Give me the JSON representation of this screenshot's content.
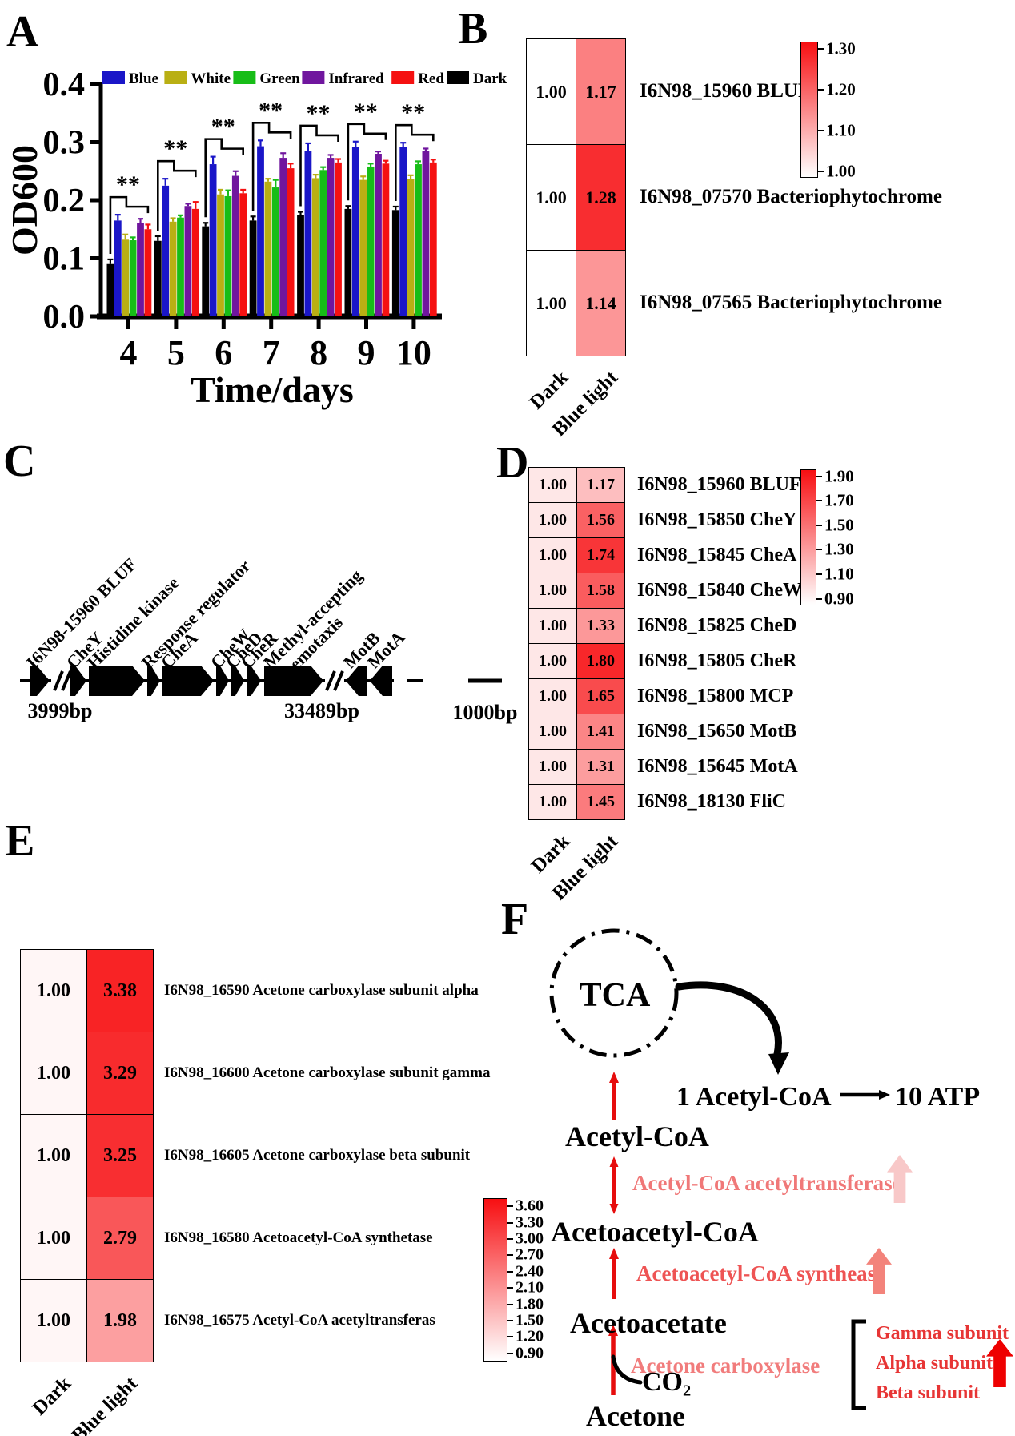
{
  "panel_letters": {
    "A": "A",
    "B": "B",
    "C": "C",
    "D": "D",
    "E": "E",
    "F": "F"
  },
  "chart_data": [
    {
      "id": "A",
      "type": "bar",
      "title": "",
      "xlabel": "Time/days",
      "ylabel": "OD600",
      "categories": [
        "4",
        "5",
        "6",
        "7",
        "8",
        "9",
        "10"
      ],
      "ylim": [
        0,
        0.4
      ],
      "yticks": [
        0,
        0.1,
        0.2,
        0.3,
        0.4
      ],
      "grid": false,
      "legend_position": "top",
      "series": [
        {
          "name": "Dark",
          "color": "#000000",
          "values": [
            0.09,
            0.13,
            0.155,
            0.165,
            0.175,
            0.185,
            0.183
          ],
          "errors": [
            0.008,
            0.008,
            0.006,
            0.007,
            0.005,
            0.005,
            0.006
          ]
        },
        {
          "name": "Blue",
          "color": "#1A16C8",
          "values": [
            0.165,
            0.225,
            0.262,
            0.293,
            0.285,
            0.292,
            0.292
          ],
          "errors": [
            0.01,
            0.012,
            0.013,
            0.01,
            0.013,
            0.009,
            0.007
          ]
        },
        {
          "name": "White",
          "color": "#B9AF14",
          "values": [
            0.132,
            0.163,
            0.21,
            0.232,
            0.238,
            0.235,
            0.237
          ],
          "errors": [
            0.009,
            0.006,
            0.008,
            0.005,
            0.006,
            0.006,
            0.006
          ]
        },
        {
          "name": "Green",
          "color": "#17BD17",
          "values": [
            0.131,
            0.17,
            0.207,
            0.222,
            0.252,
            0.258,
            0.262
          ],
          "errors": [
            0.005,
            0.004,
            0.01,
            0.013,
            0.005,
            0.005,
            0.005
          ]
        },
        {
          "name": "Infrared",
          "color": "#70169E",
          "values": [
            0.16,
            0.19,
            0.242,
            0.273,
            0.273,
            0.28,
            0.285
          ],
          "errors": [
            0.008,
            0.004,
            0.008,
            0.008,
            0.005,
            0.004,
            0.004
          ]
        },
        {
          "name": "Red",
          "color": "#F51111",
          "values": [
            0.15,
            0.185,
            0.212,
            0.255,
            0.265,
            0.263,
            0.265
          ],
          "errors": [
            0.008,
            0.012,
            0.006,
            0.008,
            0.006,
            0.005,
            0.005
          ]
        }
      ],
      "legend_order": [
        "Blue",
        "White",
        "Green",
        "Infrared",
        "Red",
        "Dark"
      ],
      "significance": [
        "**",
        "**",
        "**",
        "**",
        "**",
        "**",
        "**"
      ]
    },
    {
      "id": "B",
      "type": "heatmap",
      "columns": [
        "Dark",
        "Blue light"
      ],
      "rows": [
        {
          "label": "I6N98_15960 BLUF",
          "values": [
            1.0,
            1.17
          ]
        },
        {
          "label": "I6N98_07570 Bacteriophytochrome",
          "values": [
            1.0,
            1.28
          ]
        },
        {
          "label": "I6N98_07565 Bacteriophytochrome",
          "values": [
            1.0,
            1.14
          ]
        }
      ],
      "scale": {
        "min": 1.0,
        "max": 1.32,
        "ticks": [
          "1.30",
          "1.20",
          "1.10",
          "1.00"
        ]
      }
    },
    {
      "id": "D",
      "type": "heatmap",
      "columns": [
        "Dark",
        "Blue light"
      ],
      "rows": [
        {
          "label": "I6N98_15960 BLUF",
          "values": [
            1.0,
            1.17
          ]
        },
        {
          "label": "I6N98_15850 CheY",
          "values": [
            1.0,
            1.56
          ]
        },
        {
          "label": "I6N98_15845 CheA",
          "values": [
            1.0,
            1.74
          ]
        },
        {
          "label": "I6N98_15840 CheW",
          "values": [
            1.0,
            1.58
          ]
        },
        {
          "label": "I6N98_15825 CheD",
          "values": [
            1.0,
            1.33
          ]
        },
        {
          "label": "I6N98_15805 CheR",
          "values": [
            1.0,
            1.8
          ]
        },
        {
          "label": "I6N98_15800 MCP",
          "values": [
            1.0,
            1.65
          ]
        },
        {
          "label": "I6N98_15650 MotB",
          "values": [
            1.0,
            1.41
          ]
        },
        {
          "label": "I6N98_15645 MotA",
          "values": [
            1.0,
            1.31
          ]
        },
        {
          "label": "I6N98_18130 FliC",
          "values": [
            1.0,
            1.45
          ]
        }
      ],
      "scale": {
        "min": 0.9,
        "max": 1.9,
        "ticks": [
          "1.90",
          "1.70",
          "1.50",
          "1.30",
          "1.10",
          "0.90"
        ]
      }
    },
    {
      "id": "E",
      "type": "heatmap",
      "columns": [
        "Dark",
        "Blue light"
      ],
      "rows": [
        {
          "label": "I6N98_16590 Acetone carboxylase subunit alpha",
          "values": [
            1.0,
            3.38
          ]
        },
        {
          "label": "I6N98_16600 Acetone carboxylase subunit gamma",
          "values": [
            1.0,
            3.29
          ]
        },
        {
          "label": "I6N98_16605 Acetone carboxylase beta subunit",
          "values": [
            1.0,
            3.25
          ]
        },
        {
          "label": "I6N98_16580 Acetoacetyl-CoA synthetase",
          "values": [
            1.0,
            2.79
          ]
        },
        {
          "label": "I6N98_16575 Acetyl-CoA acetyltransferas",
          "values": [
            1.0,
            1.98
          ]
        }
      ],
      "scale": {
        "min": 0.9,
        "max": 3.6,
        "ticks": [
          "3.60",
          "3.30",
          "3.00",
          "2.70",
          "2.40",
          "2.10",
          "1.80",
          "1.50",
          "1.20",
          "0.90"
        ]
      }
    }
  ],
  "gene_map": {
    "genes": [
      {
        "name": "I6N98-15960 BLUF",
        "dir": "right"
      },
      {
        "name": "CheY",
        "dir": "right"
      },
      {
        "name": "Histidine kinase",
        "dir": "right"
      },
      {
        "name": "Response regulator",
        "dir": "right"
      },
      {
        "name": "CheA",
        "dir": "right"
      },
      {
        "name": "CheW",
        "dir": "right"
      },
      {
        "name": "CheD",
        "dir": "right"
      },
      {
        "name": "CheR",
        "dir": "right"
      },
      {
        "name": "Methyl-accepting|chemotaxis",
        "dir": "right"
      },
      {
        "name": "MotB",
        "dir": "left"
      },
      {
        "name": "MotA",
        "dir": "left"
      }
    ],
    "bp_labels": [
      "3999bp",
      "33489bp",
      "1000bp"
    ]
  },
  "pathway": {
    "tca": "TCA",
    "energy": {
      "from": "1 Acetyl-CoA",
      "to": "10 ATP"
    },
    "metabolites": {
      "acetyl_coa": "Acetyl-CoA",
      "acetoacetyl_coa": "Acetoacetyl-CoA",
      "acetoacetate": "Acetoacetate",
      "acetone": "Acetone",
      "co2": "CO₂"
    },
    "arrow_color": "#E60D0D",
    "enzymes": {
      "acetyltransferase": {
        "label": "Acetyl-CoA acetyltransferase",
        "color": "#F07878",
        "arrow": "#F8C8C8"
      },
      "synthease": {
        "label": "Acetoacetyl-CoA synthease",
        "color": "#EE5454",
        "arrow": "#F3837B"
      },
      "carboxylase": {
        "label": "Acetone carboxylase",
        "color": "#F17C7C",
        "arrow": "#EE0000",
        "subunits": [
          "Gamma subunit",
          "Alpha subunit",
          "Beta subunit"
        ],
        "subunit_color": "#E73535"
      }
    }
  }
}
